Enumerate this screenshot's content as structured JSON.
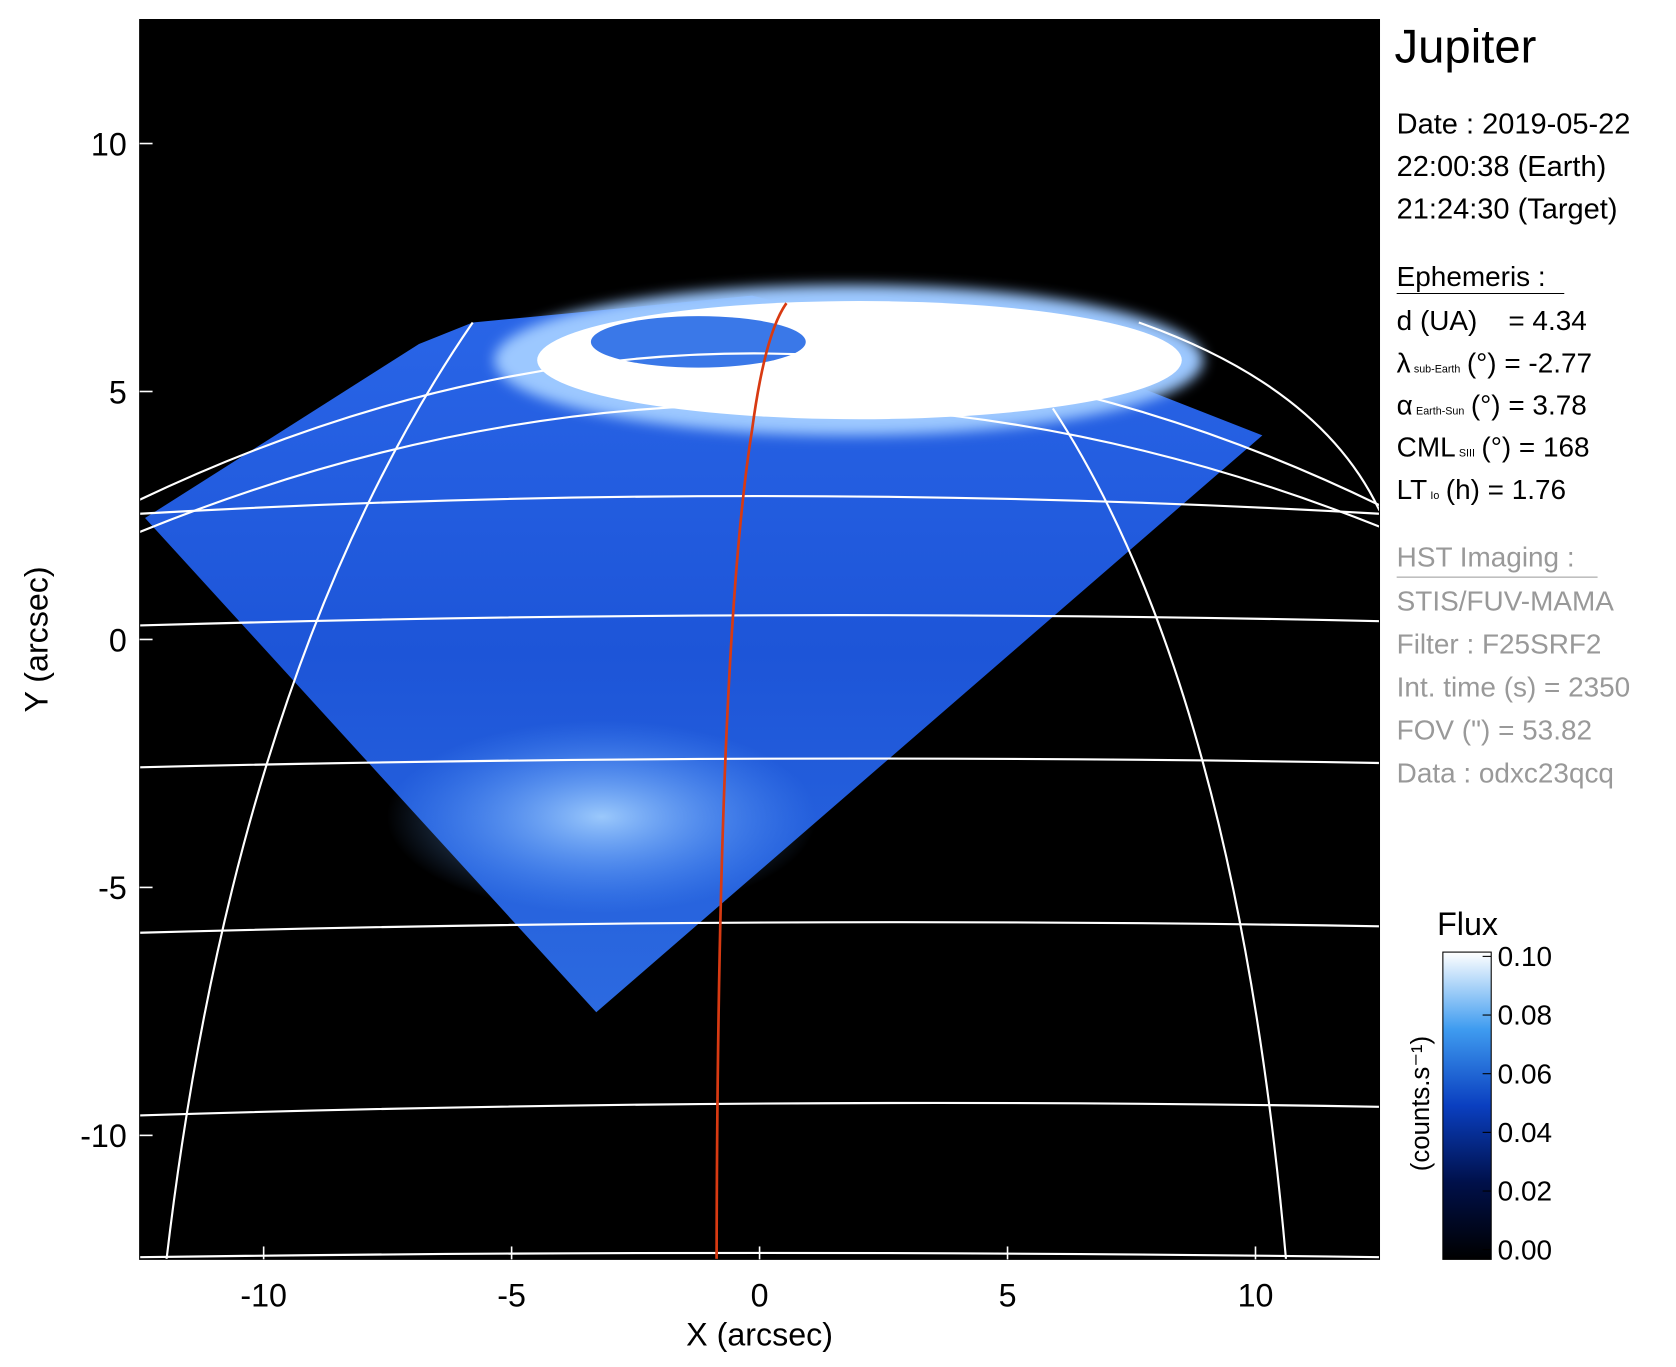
{
  "chart_data": {
    "type": "image",
    "title": "Jupiter",
    "xlabel": "X (arcsec)",
    "ylabel": "Y (arcsec)",
    "xlim": [
      -12.5,
      12.5
    ],
    "ylim": [
      -12.5,
      12.5
    ],
    "xticks": [
      -10,
      -5,
      0,
      5,
      10
    ],
    "yticks": [
      -10,
      -5,
      0,
      5,
      10
    ],
    "colorbar": {
      "label": "Flux",
      "unit": "(counts.s⁻¹)",
      "clim": [
        0,
        0.1
      ],
      "ticks": [
        {
          "value": 0,
          "label": "0.00"
        },
        {
          "value": 0.02,
          "label": "0.02"
        },
        {
          "value": 0.04,
          "label": "0.04"
        },
        {
          "value": 0.06,
          "label": "0.06"
        },
        {
          "value": 0.08,
          "label": "0.08"
        },
        {
          "value": 0.1,
          "label": "0.10"
        }
      ]
    },
    "info": {
      "date": [
        "Date : 2019-05-22",
        "22:00:38 (Earth)",
        "21:24:30 (Target)"
      ],
      "ephemeris_title": "Ephemeris :",
      "ephemeris": [
        {
          "head": "d (UA)    = 4.34"
        },
        {
          "head": "λ",
          "sub": "sub-Earth",
          "tail": "(°) = -2.77"
        },
        {
          "head": "α",
          "sub": "Earth-Sun",
          "tail": "(°) = 3.78"
        },
        {
          "head": "CML",
          "sub": "SIII",
          "tail": "(°) = 168"
        },
        {
          "head": "LT",
          "sub": "Io",
          "tail": "(h) = 1.76"
        }
      ],
      "instrument_title": "HST Imaging :",
      "instrument": [
        "STIS/FUV-MAMA",
        "Filter : F25SRF2",
        "Int. time (s) = 2350",
        "FOV (\") = 53.82",
        "Data : odxc23qcq"
      ]
    }
  }
}
